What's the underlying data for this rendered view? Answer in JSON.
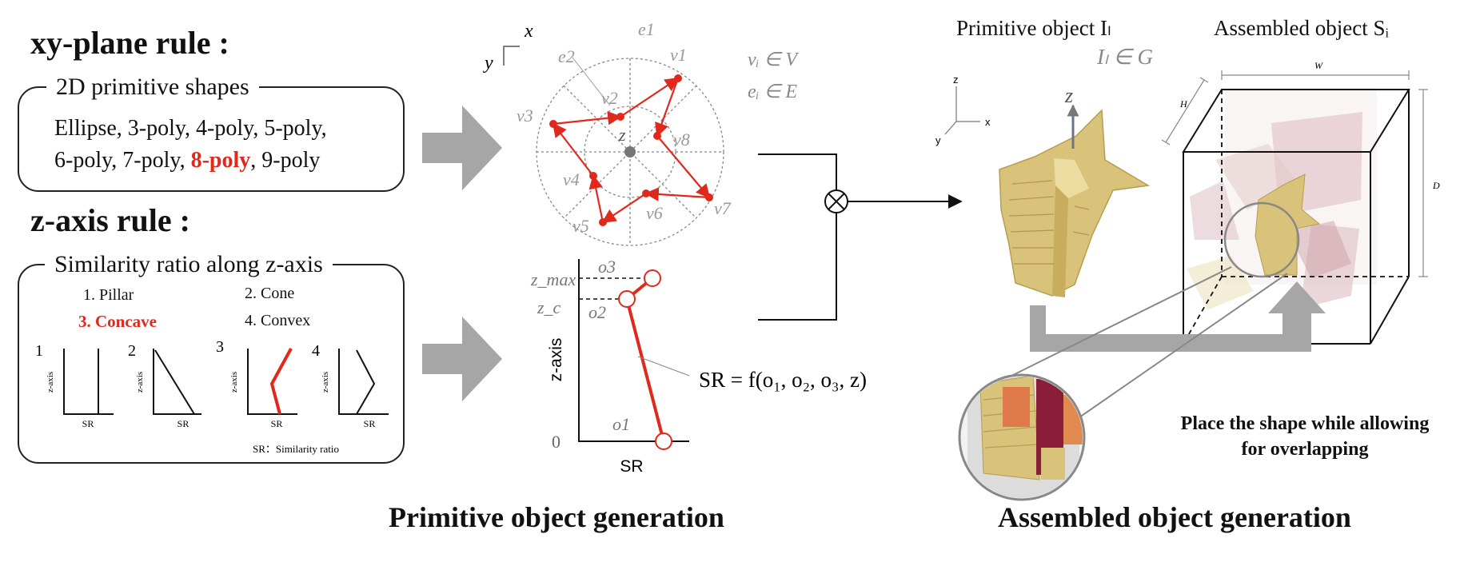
{
  "left": {
    "xy_title": "xy-plane rule :",
    "xy_box_title": "2D primitive shapes",
    "xy_line1": "Ellipse, 3-poly, 4-poly, 5-poly,",
    "xy_line2a": "6-poly,  7-poly, ",
    "xy_line2_red": "8-poly",
    "xy_line2b": ", 9-poly",
    "z_title": "z-axis rule :",
    "z_box_title": "Similarity ratio along z-axis",
    "opt1": "1. Pillar",
    "opt2": "2. Cone",
    "opt3": "3. Concave",
    "opt4": "4. Convex",
    "mini_numbers": [
      "1",
      "2",
      "3",
      "4"
    ],
    "mini_ylabel": "z-axis",
    "mini_xlabel": "SR",
    "sr_note": "SR：Similarity ratio"
  },
  "middle": {
    "coord_x": "x",
    "coord_y": "y",
    "v_labels": [
      "v1",
      "v2",
      "v3",
      "v4",
      "v5",
      "v6",
      "v7",
      "v8"
    ],
    "e_labels": [
      "e1",
      "e2"
    ],
    "z_center": "z",
    "legend_v": "vᵢ ∈ V",
    "legend_e": "eᵢ ∈ E",
    "z_max": "z_max",
    "z_c": "z_c",
    "o_labels": [
      "o3",
      "o2",
      "o1"
    ],
    "zero": "0",
    "yaxis_label": "z-axis",
    "xaxis_label": "SR",
    "formula": "SR = f(o₁, o₂, o₃, z)",
    "caption": "Primitive object generation"
  },
  "right": {
    "prim_title": "Primitive object Iₗ",
    "prim_sub": "Iₗ ∈ G",
    "asm_title": "Assembled object Sᵢ",
    "axis_z": "z",
    "axis_x": "x",
    "axis_y": "y",
    "big_z": "z",
    "dim_w": "W",
    "dim_h": "H",
    "dim_d": "D",
    "note_line1": "Place the shape while allowing",
    "note_line2": "for overlapping",
    "caption": "Assembled object generation"
  },
  "colors": {
    "accent": "#e0291c",
    "arrow_gray": "#a6a6a6",
    "shape_gold": "#d9c27a"
  }
}
